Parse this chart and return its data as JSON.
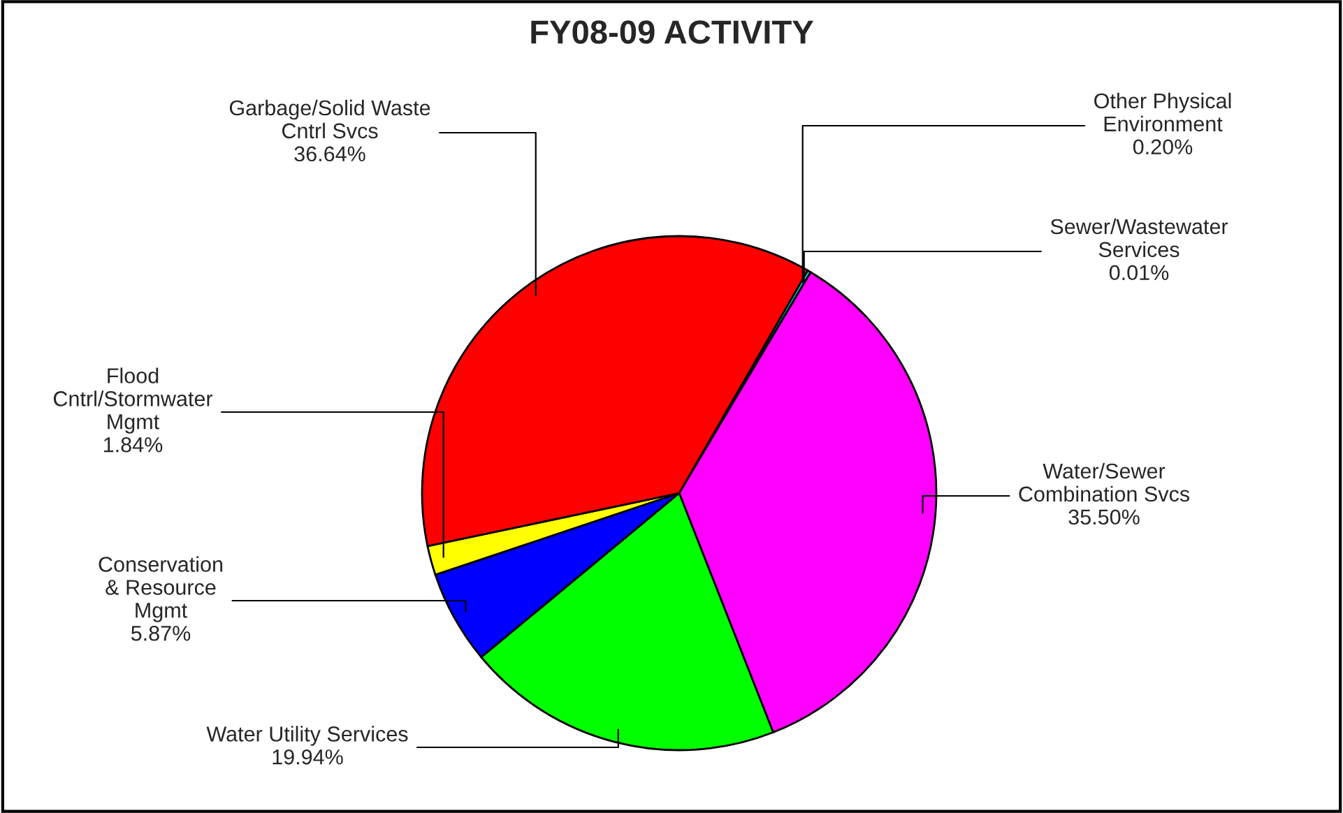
{
  "chart_data": {
    "type": "pie",
    "title": "FY08-09 ACTIVITY",
    "categories": [
      "Other Physical\nEnvironment",
      "Sewer/Wastewater\nServices",
      "Water/Sewer\nCombination Svcs",
      "Water Utility Services",
      "Conservation\n& Resource\nMgmt",
      "Flood\nCntrl/Stormwater\nMgmt",
      "Garbage/Solid Waste\nCntrl Svcs"
    ],
    "values": [
      0.2,
      0.01,
      35.5,
      19.94,
      5.87,
      1.84,
      36.64
    ],
    "value_labels": [
      "0.20%",
      "0.01%",
      "35.50%",
      "19.94%",
      "5.87%",
      "1.84%",
      "36.64%"
    ],
    "colors": [
      "#00ffff",
      "#000080",
      "#ff00ff",
      "#00ff00",
      "#0000ff",
      "#ffff00",
      "#ff0000"
    ]
  }
}
